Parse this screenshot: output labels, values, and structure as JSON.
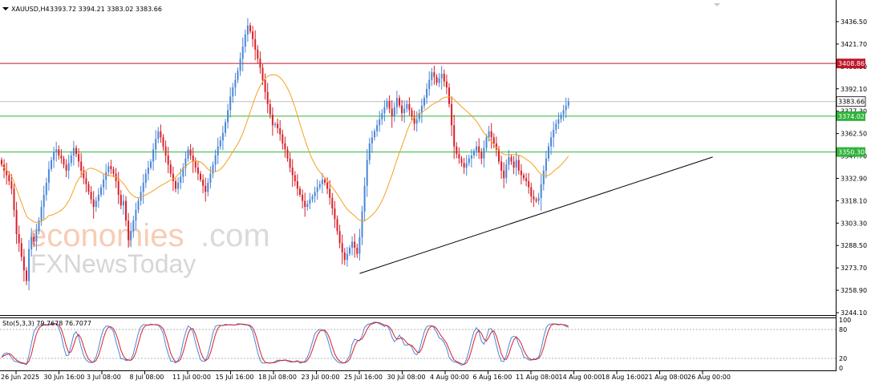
{
  "chart_data": {
    "type": "candlestick",
    "symbol_header": "XAUUSD,H4",
    "ohlc_header": "3393.72 3394.21 3383.02 3383.66",
    "current_price_label": "3383.66",
    "price_axis_ticks": [
      "3436.50",
      "3421.70",
      "3406.90",
      "3392.10",
      "3377.30",
      "3362.50",
      "3347.70",
      "3332.90",
      "3318.10",
      "3303.30",
      "3288.50",
      "3273.70",
      "3258.90",
      "3244.10"
    ],
    "price_levels": [
      {
        "value": 3408.86,
        "label": "3408.86",
        "color": "#c0172b"
      },
      {
        "value": 3374.02,
        "label": "3374.02",
        "color": "#2fb33a"
      },
      {
        "value": 3350.3,
        "label": "3350.30",
        "color": "#2fb33a"
      }
    ],
    "time_axis_labels": [
      "26 Jun 2025",
      "30 Jun 16:00",
      "3 Jul 08:00",
      "8 Jul 08:00",
      "11 Jul 00:00",
      "15 Jul 16:00",
      "18 Jul 08:00",
      "23 Jul 00:00",
      "25 Jul 16:00",
      "30 Jul 08:00",
      "4 Aug 00:00",
      "6 Aug 16:00",
      "11 Aug 08:00",
      "14 Aug 00:00",
      "18 Aug 16:00",
      "21 Aug 08:00",
      "26 Aug 00:00"
    ],
    "trendline": {
      "from": {
        "bar_index": 144,
        "price": 3270
      },
      "to": {
        "bar_index": 286,
        "price": 3347
      }
    },
    "ma_color": "#f5a020",
    "bull_color": "#4a86d8",
    "bear_color": "#d8202a",
    "closes": [
      3342,
      3338,
      3335,
      3331,
      3326,
      3312,
      3296,
      3290,
      3281,
      3272,
      3265,
      3286,
      3294,
      3291,
      3298,
      3305,
      3314,
      3322,
      3330,
      3339,
      3345,
      3350,
      3352,
      3348,
      3346,
      3342,
      3338,
      3343,
      3348,
      3353,
      3349,
      3344,
      3338,
      3333,
      3329,
      3324,
      3319,
      3314,
      3318,
      3322,
      3327,
      3332,
      3337,
      3341,
      3339,
      3336,
      3331,
      3322,
      3315,
      3318,
      3305,
      3292,
      3298,
      3305,
      3312,
      3318,
      3324,
      3330,
      3336,
      3340,
      3344,
      3352,
      3359,
      3364,
      3360,
      3354,
      3348,
      3342,
      3336,
      3331,
      3326,
      3330,
      3334,
      3340,
      3346,
      3352,
      3348,
      3344,
      3340,
      3336,
      3332,
      3328,
      3324,
      3330,
      3336,
      3342,
      3348,
      3354,
      3358,
      3363,
      3370,
      3378,
      3387,
      3393,
      3398,
      3404,
      3412,
      3420,
      3428,
      3434,
      3430,
      3425,
      3418,
      3412,
      3406,
      3398,
      3390,
      3382,
      3375,
      3368,
      3369,
      3366,
      3362,
      3356,
      3352,
      3346,
      3340,
      3335,
      3331,
      3326,
      3322,
      3318,
      3314,
      3316,
      3319,
      3321,
      3324,
      3327,
      3329,
      3332,
      3330,
      3326,
      3320,
      3313,
      3306,
      3298,
      3290,
      3284,
      3279,
      3283,
      3287,
      3291,
      3287,
      3283,
      3294,
      3311,
      3328,
      3345,
      3356,
      3360,
      3364,
      3368,
      3372,
      3376,
      3380,
      3384,
      3379,
      3374,
      3380,
      3386,
      3381,
      3376,
      3379,
      3382,
      3378,
      3374,
      3369,
      3372,
      3376,
      3381,
      3386,
      3392,
      3398,
      3403,
      3400,
      3396,
      3399,
      3402,
      3397,
      3393,
      3382,
      3368,
      3354,
      3349,
      3346,
      3343,
      3340,
      3343,
      3346,
      3348,
      3351,
      3354,
      3350,
      3346,
      3353,
      3360,
      3364,
      3360,
      3356,
      3352,
      3344,
      3338,
      3333,
      3342,
      3347,
      3344,
      3340,
      3345,
      3338,
      3335,
      3333,
      3331,
      3327,
      3321,
      3319,
      3318,
      3320,
      3329,
      3338,
      3346,
      3354,
      3360,
      3365,
      3369,
      3372,
      3375,
      3378,
      3381,
      3383.66
    ]
  }
}
